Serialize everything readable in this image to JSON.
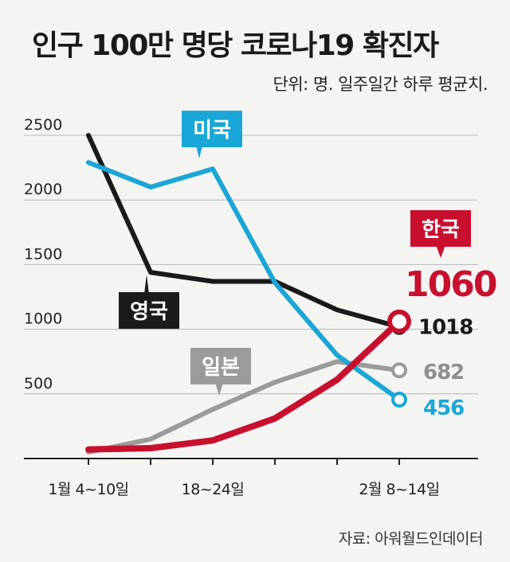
{
  "header": {
    "title": "인구 100만 명당 코로나19 확진자",
    "subtitle": "단위: 명. 일주일간 하루 평균치."
  },
  "footer": {
    "source": "자료: 아워월드인데이터"
  },
  "chart_data": {
    "type": "line",
    "title": "인구 100만 명당 코로나19 확진자",
    "ylabel": "명",
    "ylim": [
      0,
      2500
    ],
    "yticks": [
      500,
      1000,
      1500,
      2000,
      2500
    ],
    "x": [
      0,
      1,
      2,
      3,
      4,
      5
    ],
    "xlim": [
      0,
      5
    ],
    "x_tick_labels": [
      {
        "x": 0,
        "label": "1월 4~10일"
      },
      {
        "x": 2,
        "label": "18~24일"
      },
      {
        "x": 5,
        "label": "2월 8~14일"
      }
    ],
    "series": [
      {
        "name": "영국",
        "color": "#1a1a1a",
        "values": [
          2500,
          1440,
          1370,
          1370,
          1150,
          1018
        ],
        "end_label": "1018",
        "marker": "circle"
      },
      {
        "name": "미국",
        "color": "#1aa6d6",
        "values": [
          2290,
          2100,
          2240,
          1360,
          800,
          456
        ],
        "end_label": "456",
        "marker": "circle"
      },
      {
        "name": "일본",
        "color": "#9b9b9b",
        "values": [
          50,
          150,
          380,
          590,
          750,
          682
        ],
        "end_label": "682",
        "marker": "circle"
      },
      {
        "name": "한국",
        "color": "#c8102e",
        "values": [
          70,
          80,
          140,
          310,
          610,
          1060
        ],
        "end_label": "1060",
        "marker": "circle"
      }
    ],
    "annotations": [
      "영국",
      "미국",
      "일본",
      "한국",
      "1060"
    ]
  }
}
